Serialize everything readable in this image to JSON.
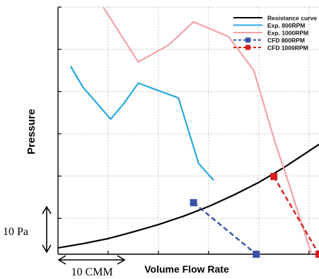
{
  "chart_data": {
    "type": "line",
    "xlabel": "Volume Flow Rate",
    "ylabel": "Pressure",
    "xlim": [
      0,
      5.2
    ],
    "ylim": [
      -0.85,
      5
    ],
    "grid": true,
    "legend_position": "top-right",
    "scale_bars": {
      "x": {
        "label": "10 CMM",
        "value": 1
      },
      "y": {
        "label": "10 Pa",
        "value": 1
      }
    },
    "series": [
      {
        "name": "Resistance curve",
        "color": "#000000",
        "style": "solid",
        "marker": "none",
        "x": [
          0,
          0.5,
          1,
          1.5,
          2,
          2.5,
          3,
          3.5,
          4,
          4.5,
          5.2
        ],
        "y": [
          -0.7,
          -0.6,
          -0.48,
          -0.32,
          -0.15,
          0.05,
          0.28,
          0.55,
          0.85,
          1.2,
          1.75
        ]
      },
      {
        "name": "Exp. 800RPM",
        "color": "#29a8e0",
        "style": "solid",
        "marker": "none",
        "x": [
          0.25,
          0.5,
          1.05,
          1.3,
          1.6,
          2.4,
          2.8,
          3.1
        ],
        "y": [
          3.6,
          3.1,
          2.35,
          2.7,
          3.2,
          2.85,
          1.3,
          0.9
        ]
      },
      {
        "name": "Exp. 1000RPM",
        "color": "#f4a3a8",
        "style": "solid",
        "marker": "none",
        "x": [
          0.9,
          1.6,
          2.2,
          2.7,
          3.4,
          3.9,
          4.2,
          4.35,
          4.55,
          5.05
        ],
        "y": [
          5,
          3.7,
          4.1,
          4.65,
          4.3,
          3.5,
          2.3,
          1.7,
          1.0,
          -0.85
        ]
      },
      {
        "name": "CFD 800RPM",
        "color": "#3a50a8",
        "style": "dashed",
        "marker": "square",
        "x": [
          2.7,
          3.95
        ],
        "y": [
          0.37,
          -0.85
        ]
      },
      {
        "name": "CFD 1000RPM",
        "color": "#d62020",
        "style": "dashed",
        "marker": "square",
        "x": [
          4.3,
          5.2
        ],
        "y": [
          0.99,
          -0.85
        ]
      }
    ]
  }
}
